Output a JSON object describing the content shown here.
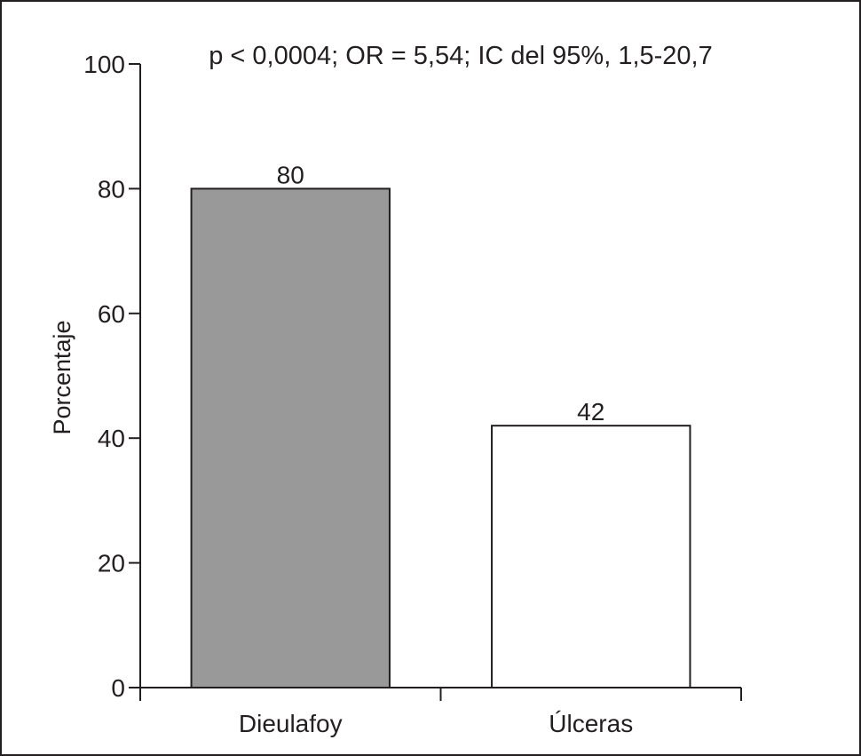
{
  "chart_data": {
    "type": "bar",
    "title": "p < 0,0004; OR = 5,54; IC del 95%, 1,5-20,7",
    "xlabel": "",
    "ylabel": "Porcentaje",
    "categories": [
      "Dieulafoy",
      "Úlceras"
    ],
    "values": [
      80,
      42
    ],
    "data_labels": [
      "80",
      "42"
    ],
    "bar_colors": [
      "#999999",
      "#ffffff"
    ],
    "ylim": [
      0,
      100
    ],
    "yticks": [
      0,
      20,
      40,
      60,
      80,
      100
    ],
    "ytick_labels": [
      "0",
      "20",
      "40",
      "60",
      "80",
      "100"
    ],
    "grid": false,
    "legend": "none"
  }
}
